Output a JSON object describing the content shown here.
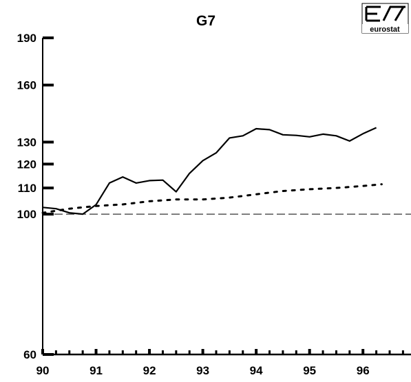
{
  "chart_data": {
    "type": "line",
    "title": "G7",
    "xlabel": "",
    "ylabel": "",
    "xlim": [
      1990,
      1996.9
    ],
    "ylim": [
      60,
      190
    ],
    "y_scale": "log",
    "x_ticks": [
      {
        "label": "90",
        "value": 1990
      },
      {
        "label": "91",
        "value": 1991
      },
      {
        "label": "92",
        "value": 1992
      },
      {
        "label": "93",
        "value": 1993
      },
      {
        "label": "94",
        "value": 1994
      },
      {
        "label": "95",
        "value": 1995
      },
      {
        "label": "96",
        "value": 1996
      }
    ],
    "y_ticks": [
      {
        "label": "60",
        "value": 60
      },
      {
        "label": "100",
        "value": 100
      },
      {
        "label": "110",
        "value": 110
      },
      {
        "label": "120",
        "value": 120
      },
      {
        "label": "130",
        "value": 130
      },
      {
        "label": "160",
        "value": 160
      },
      {
        "label": "190",
        "value": 190
      }
    ],
    "reference_line": {
      "y": 100,
      "style": "dashed"
    },
    "grid": false,
    "legend": "none",
    "series": [
      {
        "style": "solid",
        "color": "#000000",
        "x": [
          1990.0,
          1990.25,
          1990.5,
          1990.75,
          1991.0,
          1991.25,
          1991.5,
          1991.75,
          1992.0,
          1992.25,
          1992.5,
          1992.75,
          1993.0,
          1993.25,
          1993.5,
          1993.75,
          1994.0,
          1994.25,
          1994.5,
          1994.75,
          1995.0,
          1995.25,
          1995.5,
          1995.75,
          1996.0,
          1996.25
        ],
        "y": [
          102.5,
          102.0,
          100.5,
          100.0,
          103.5,
          112,
          114.5,
          112,
          113,
          113.2,
          108.5,
          116,
          121.5,
          125,
          132,
          133,
          136.5,
          136,
          133.5,
          133.2,
          132.5,
          133.8,
          133,
          130.5,
          134,
          137
        ]
      },
      {
        "style": "dotted",
        "color": "#000000",
        "x": [
          1990.0,
          1990.5,
          1991.0,
          1991.5,
          1992.0,
          1992.5,
          1993.0,
          1993.5,
          1994.0,
          1994.5,
          1995.0,
          1995.5,
          1996.0,
          1996.35
        ],
        "y": [
          100.5,
          102.0,
          103.0,
          103.6,
          104.8,
          105.5,
          105.5,
          106.2,
          107.5,
          108.8,
          109.5,
          110.0,
          110.8,
          111.5
        ]
      }
    ]
  },
  "logo": {
    "text": "eurostat"
  }
}
